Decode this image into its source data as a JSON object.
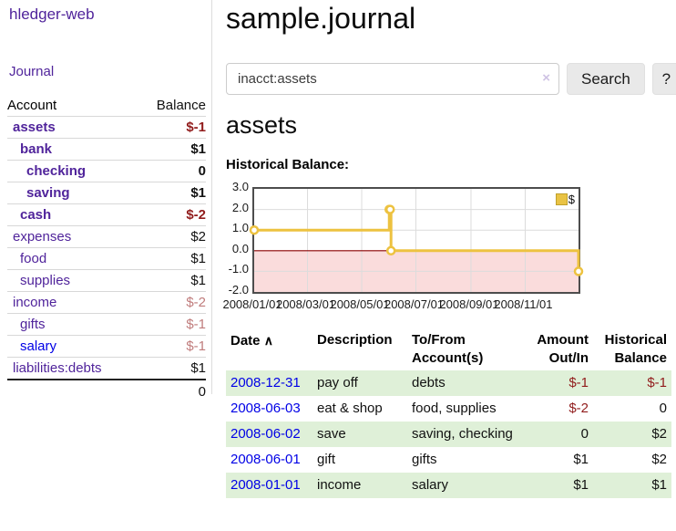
{
  "brand": "hledger-web",
  "nav": {
    "journal": "Journal"
  },
  "sidebar": {
    "header": {
      "account": "Account",
      "balance": "Balance"
    },
    "rows": [
      {
        "name": "assets",
        "balance": "$-1",
        "depth": 1,
        "active": true
      },
      {
        "name": "bank",
        "balance": "$1",
        "depth": 2,
        "active": true
      },
      {
        "name": "checking",
        "balance": "0",
        "depth": 3,
        "active": true
      },
      {
        "name": "saving",
        "balance": "$1",
        "depth": 3,
        "active": true
      },
      {
        "name": "cash",
        "balance": "$-2",
        "depth": 2,
        "active": true
      },
      {
        "name": "expenses",
        "balance": "$2",
        "depth": 1,
        "active": false
      },
      {
        "name": "food",
        "balance": "$1",
        "depth": 2,
        "active": false
      },
      {
        "name": "supplies",
        "balance": "$1",
        "depth": 2,
        "active": false
      },
      {
        "name": "income",
        "balance": "$-2",
        "depth": 1,
        "active": false
      },
      {
        "name": "gifts",
        "balance": "$-1",
        "depth": 2,
        "active": false
      },
      {
        "name": "salary",
        "balance": "$-1",
        "depth": 2,
        "active": false
      },
      {
        "name": "liabilities:debts",
        "balance": "$1",
        "depth": 1,
        "active": false
      }
    ],
    "total": "0"
  },
  "header": {
    "title": "sample.journal"
  },
  "search": {
    "value": "inacct:assets",
    "clear_icon": "×",
    "button_label": "Search",
    "help_label": "?"
  },
  "register": {
    "account_title": "assets",
    "chart_title": "Historical Balance:",
    "table": {
      "headers": {
        "date": "Date",
        "sort_icon": "∧",
        "description": "Description",
        "accounts": "To/From Account(s)",
        "amount": "Amount Out/In",
        "balance": "Historical Balance"
      },
      "rows": [
        {
          "date": "2008-12-31",
          "description": "pay off",
          "accounts": "debts",
          "amount": "$-1",
          "balance": "$-1"
        },
        {
          "date": "2008-06-03",
          "description": "eat & shop",
          "accounts": "food, supplies",
          "amount": "$-2",
          "balance": "0"
        },
        {
          "date": "2008-06-02",
          "description": "save",
          "accounts": "saving, checking",
          "amount": "0",
          "balance": "$2"
        },
        {
          "date": "2008-06-01",
          "description": "gift",
          "accounts": "gifts",
          "amount": "$1",
          "balance": "$2"
        },
        {
          "date": "2008-01-01",
          "description": "income",
          "accounts": "salary",
          "amount": "$1",
          "balance": "$1"
        }
      ]
    }
  },
  "chart_data": {
    "type": "line",
    "step": true,
    "title": "Historical Balance",
    "series": [
      {
        "name": "$",
        "color": "#edc240",
        "points": [
          [
            "2008-01-01",
            1
          ],
          [
            "2008-06-01",
            2
          ],
          [
            "2008-06-02",
            2
          ],
          [
            "2008-06-03",
            0
          ],
          [
            "2008-12-31",
            -1
          ]
        ]
      }
    ],
    "x_range": [
      "2008-01-01",
      "2008-12-31"
    ],
    "x_ticks": [
      "2008/01/01",
      "2008/03/01",
      "2008/05/01",
      "2008/07/01",
      "2008/09/01",
      "2008/11/01"
    ],
    "y_ticks": [
      3.0,
      2.0,
      1.0,
      0.0,
      -1.0,
      -2.0
    ],
    "ylim": [
      -2,
      3
    ],
    "grid": true,
    "legend": {
      "label": "$",
      "position": "top-right"
    },
    "negative_region": {
      "from": 0,
      "to": -2,
      "color": "#fadcdc",
      "line_color": "#8b0000"
    }
  },
  "colors": {
    "link_purple": "#50249b",
    "link_blue": "#0000e6",
    "negative_strong": "#911c1c",
    "negative_dim": "#c07c7c",
    "row_green": "#dff0d8",
    "series_gold": "#edc240"
  }
}
